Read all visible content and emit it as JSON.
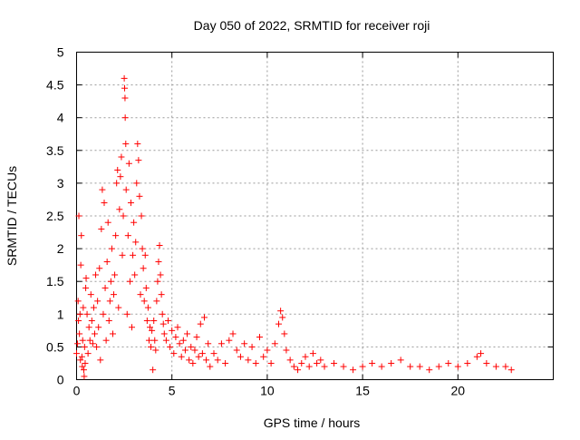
{
  "chart_data": {
    "type": "scatter",
    "title": "Day 050 of 2022, SRMTID for receiver roji",
    "xlabel": "GPS time / hours",
    "ylabel": "SRMTID / TECUs",
    "xlim": [
      0,
      25
    ],
    "ylim": [
      0,
      5
    ],
    "x_ticks": [
      "0",
      "5",
      "10",
      "15",
      "20"
    ],
    "y_ticks": [
      "0",
      "0.5",
      "1",
      "1.5",
      "2",
      "2.5",
      "3",
      "3.5",
      "4",
      "4.5",
      "5"
    ],
    "grid": true,
    "marker": "+",
    "color": "#ff0000",
    "series": [
      {
        "points": [
          [
            0.0,
            0.4
          ],
          [
            0.05,
            0.55
          ],
          [
            0.08,
            1.2
          ],
          [
            0.1,
            0.9
          ],
          [
            0.12,
            2.5
          ],
          [
            0.15,
            0.7
          ],
          [
            0.18,
            1.0
          ],
          [
            0.2,
            0.3
          ],
          [
            0.22,
            1.75
          ],
          [
            0.25,
            2.2
          ],
          [
            0.28,
            0.35
          ],
          [
            0.3,
            0.2
          ],
          [
            0.32,
            0.6
          ],
          [
            0.35,
            1.1
          ],
          [
            0.38,
            0.15
          ],
          [
            0.4,
            0.05
          ],
          [
            0.42,
            0.5
          ],
          [
            0.45,
            0.25
          ],
          [
            0.48,
            1.4
          ],
          [
            0.5,
            1.55
          ],
          [
            0.55,
            1.0
          ],
          [
            0.6,
            0.4
          ],
          [
            0.65,
            0.8
          ],
          [
            0.7,
            0.6
          ],
          [
            0.75,
            1.3
          ],
          [
            0.8,
            0.9
          ],
          [
            0.85,
            0.55
          ],
          [
            0.9,
            1.1
          ],
          [
            0.95,
            0.7
          ],
          [
            1.0,
            1.6
          ],
          [
            1.05,
            0.5
          ],
          [
            1.1,
            1.2
          ],
          [
            1.15,
            0.8
          ],
          [
            1.2,
            1.7
          ],
          [
            1.25,
            0.3
          ],
          [
            1.3,
            2.3
          ],
          [
            1.35,
            2.9
          ],
          [
            1.4,
            1.0
          ],
          [
            1.45,
            2.7
          ],
          [
            1.5,
            1.4
          ],
          [
            1.55,
            0.6
          ],
          [
            1.6,
            1.8
          ],
          [
            1.65,
            2.4
          ],
          [
            1.7,
            0.9
          ],
          [
            1.75,
            1.2
          ],
          [
            1.8,
            1.5
          ],
          [
            1.85,
            2.0
          ],
          [
            1.9,
            0.7
          ],
          [
            1.95,
            1.3
          ],
          [
            2.0,
            1.6
          ],
          [
            2.05,
            2.2
          ],
          [
            2.1,
            3.0
          ],
          [
            2.15,
            3.2
          ],
          [
            2.2,
            1.1
          ],
          [
            2.25,
            2.6
          ],
          [
            2.3,
            3.1
          ],
          [
            2.35,
            3.4
          ],
          [
            2.4,
            1.9
          ],
          [
            2.45,
            2.5
          ],
          [
            2.5,
            4.6
          ],
          [
            2.52,
            4.45
          ],
          [
            2.54,
            4.3
          ],
          [
            2.55,
            4.0
          ],
          [
            2.58,
            3.6
          ],
          [
            2.6,
            2.9
          ],
          [
            2.65,
            1.0
          ],
          [
            2.7,
            2.2
          ],
          [
            2.75,
            3.3
          ],
          [
            2.8,
            1.5
          ],
          [
            2.85,
            2.7
          ],
          [
            2.9,
            0.8
          ],
          [
            2.95,
            1.9
          ],
          [
            3.0,
            2.4
          ],
          [
            3.05,
            1.6
          ],
          [
            3.1,
            2.1
          ],
          [
            3.15,
            3.0
          ],
          [
            3.2,
            3.6
          ],
          [
            3.25,
            3.35
          ],
          [
            3.3,
            2.8
          ],
          [
            3.35,
            1.3
          ],
          [
            3.4,
            2.5
          ],
          [
            3.45,
            2.0
          ],
          [
            3.5,
            1.7
          ],
          [
            3.55,
            1.2
          ],
          [
            3.6,
            1.9
          ],
          [
            3.65,
            1.4
          ],
          [
            3.7,
            0.9
          ],
          [
            3.75,
            1.1
          ],
          [
            3.8,
            0.6
          ],
          [
            3.85,
            0.8
          ],
          [
            3.9,
            0.5
          ],
          [
            3.95,
            0.75
          ],
          [
            4.0,
            0.15
          ],
          [
            4.05,
            0.9
          ],
          [
            4.1,
            0.6
          ],
          [
            4.15,
            0.45
          ],
          [
            4.2,
            1.2
          ],
          [
            4.25,
            1.5
          ],
          [
            4.3,
            1.8
          ],
          [
            4.35,
            2.05
          ],
          [
            4.4,
            1.6
          ],
          [
            4.45,
            1.3
          ],
          [
            4.5,
            1.0
          ],
          [
            4.55,
            0.85
          ],
          [
            4.6,
            0.7
          ],
          [
            4.7,
            0.6
          ],
          [
            4.8,
            0.9
          ],
          [
            4.9,
            0.5
          ],
          [
            5.0,
            0.75
          ],
          [
            5.1,
            0.4
          ],
          [
            5.2,
            0.65
          ],
          [
            5.3,
            0.8
          ],
          [
            5.4,
            0.55
          ],
          [
            5.5,
            0.35
          ],
          [
            5.6,
            0.6
          ],
          [
            5.7,
            0.45
          ],
          [
            5.8,
            0.7
          ],
          [
            5.9,
            0.3
          ],
          [
            6.0,
            0.5
          ],
          [
            6.1,
            0.25
          ],
          [
            6.2,
            0.45
          ],
          [
            6.3,
            0.65
          ],
          [
            6.4,
            0.35
          ],
          [
            6.5,
            0.85
          ],
          [
            6.6,
            0.4
          ],
          [
            6.7,
            0.95
          ],
          [
            6.8,
            0.3
          ],
          [
            6.9,
            0.55
          ],
          [
            7.0,
            0.2
          ],
          [
            7.2,
            0.4
          ],
          [
            7.4,
            0.3
          ],
          [
            7.6,
            0.55
          ],
          [
            7.8,
            0.25
          ],
          [
            8.0,
            0.6
          ],
          [
            8.2,
            0.7
          ],
          [
            8.4,
            0.45
          ],
          [
            8.6,
            0.35
          ],
          [
            8.8,
            0.55
          ],
          [
            9.0,
            0.3
          ],
          [
            9.2,
            0.5
          ],
          [
            9.4,
            0.25
          ],
          [
            9.6,
            0.65
          ],
          [
            9.8,
            0.35
          ],
          [
            10.0,
            0.45
          ],
          [
            10.2,
            0.25
          ],
          [
            10.4,
            0.55
          ],
          [
            10.6,
            0.85
          ],
          [
            10.7,
            1.05
          ],
          [
            10.8,
            0.95
          ],
          [
            10.9,
            0.7
          ],
          [
            11.0,
            0.45
          ],
          [
            11.2,
            0.3
          ],
          [
            11.4,
            0.2
          ],
          [
            11.6,
            0.15
          ],
          [
            11.8,
            0.25
          ],
          [
            12.0,
            0.35
          ],
          [
            12.2,
            0.2
          ],
          [
            12.4,
            0.4
          ],
          [
            12.6,
            0.25
          ],
          [
            12.8,
            0.3
          ],
          [
            13.0,
            0.2
          ],
          [
            13.5,
            0.25
          ],
          [
            14.0,
            0.2
          ],
          [
            14.5,
            0.15
          ],
          [
            15.0,
            0.2
          ],
          [
            15.5,
            0.25
          ],
          [
            16.0,
            0.2
          ],
          [
            16.5,
            0.25
          ],
          [
            17.0,
            0.3
          ],
          [
            17.5,
            0.2
          ],
          [
            18.0,
            0.2
          ],
          [
            18.5,
            0.15
          ],
          [
            19.0,
            0.2
          ],
          [
            19.5,
            0.25
          ],
          [
            20.0,
            0.2
          ],
          [
            20.5,
            0.25
          ],
          [
            21.0,
            0.35
          ],
          [
            21.2,
            0.4
          ],
          [
            21.5,
            0.25
          ],
          [
            22.0,
            0.2
          ],
          [
            22.5,
            0.2
          ],
          [
            22.8,
            0.15
          ]
        ]
      }
    ]
  }
}
